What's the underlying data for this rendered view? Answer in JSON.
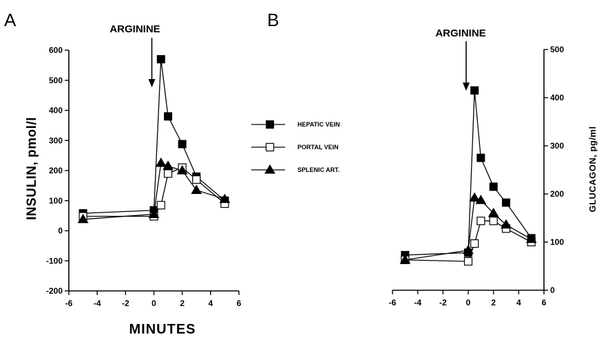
{
  "figure_labels": {
    "a": "A",
    "b": "B"
  },
  "x_axis_title": "MINUTES",
  "legend": [
    {
      "label": "HEPATIC VEIN",
      "marker": "filled-square"
    },
    {
      "label": "PORTAL VEIN",
      "marker": "open-square"
    },
    {
      "label": "SPLENIC ART.",
      "marker": "filled-triangle"
    }
  ],
  "chart_data": [
    {
      "type": "line",
      "panel": "A",
      "annotation": "ARGININE",
      "annotation_x": 0,
      "xlabel": "MINUTES",
      "ylabel": "INSULIN, pmol/l",
      "xlim": [
        -6,
        6
      ],
      "ylim": [
        -200,
        600
      ],
      "xticks": [
        -6,
        -4,
        -2,
        0,
        2,
        4,
        6
      ],
      "yticks": [
        -200,
        -100,
        0,
        100,
        200,
        300,
        400,
        500,
        600
      ],
      "series": [
        {
          "name": "HEPATIC VEIN",
          "marker": "filled-square",
          "x": [
            -5,
            0,
            0.5,
            1,
            2,
            3,
            5
          ],
          "y": [
            58,
            68,
            570,
            380,
            288,
            180,
            100
          ]
        },
        {
          "name": "PORTAL VEIN",
          "marker": "open-square",
          "x": [
            -5,
            0,
            0.5,
            1,
            2,
            3,
            5
          ],
          "y": [
            48,
            48,
            85,
            190,
            210,
            170,
            90
          ]
        },
        {
          "name": "SPLENIC ART.",
          "marker": "filled-triangle",
          "x": [
            -5,
            0,
            0.5,
            1,
            2,
            3,
            5
          ],
          "y": [
            38,
            55,
            225,
            215,
            200,
            135,
            105
          ]
        }
      ]
    },
    {
      "type": "line",
      "panel": "B",
      "annotation": "ARGININE",
      "annotation_x": 0,
      "xlabel": "MINUTES",
      "ylabel": "GLUCAGON,  pg/ml",
      "xlim": [
        -6,
        6
      ],
      "ylim": [
        0,
        500
      ],
      "xticks": [
        -6,
        -4,
        -2,
        0,
        2,
        4,
        6
      ],
      "yticks": [
        0,
        100,
        200,
        300,
        400,
        500
      ],
      "series": [
        {
          "name": "HEPATIC VEIN",
          "marker": "filled-square",
          "x": [
            -5,
            0,
            0.5,
            1,
            2,
            3,
            5
          ],
          "y": [
            73,
            78,
            415,
            275,
            215,
            182,
            108
          ]
        },
        {
          "name": "PORTAL VEIN",
          "marker": "open-square",
          "x": [
            -5,
            0,
            0.5,
            1,
            2,
            3,
            5
          ],
          "y": [
            63,
            60,
            97,
            144,
            144,
            128,
            100
          ]
        },
        {
          "name": "SPLENIC ART.",
          "marker": "filled-triangle",
          "x": [
            -5,
            0,
            0.5,
            1,
            2,
            3,
            5
          ],
          "y": [
            63,
            83,
            192,
            187,
            160,
            136,
            106
          ]
        }
      ]
    }
  ]
}
